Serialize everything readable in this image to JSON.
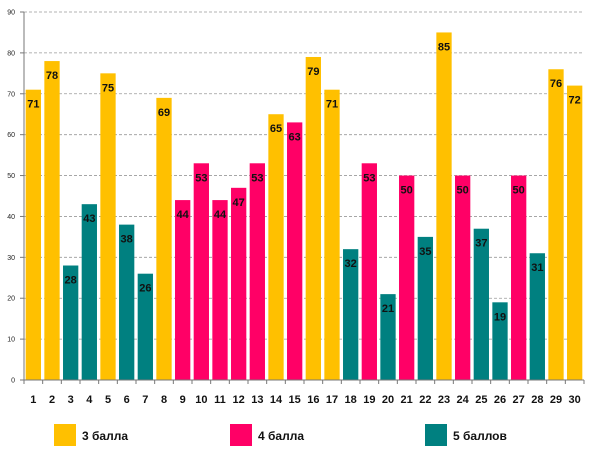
{
  "chart_data": {
    "type": "bar",
    "categories": [
      "1",
      "2",
      "3",
      "4",
      "5",
      "6",
      "7",
      "8",
      "9",
      "10",
      "11",
      "12",
      "13",
      "14",
      "15",
      "16",
      "17",
      "18",
      "19",
      "20",
      "21",
      "22",
      "23",
      "24",
      "25",
      "26",
      "27",
      "28",
      "29",
      "30"
    ],
    "values": [
      71,
      78,
      28,
      43,
      75,
      38,
      26,
      69,
      44,
      53,
      44,
      47,
      53,
      65,
      63,
      79,
      71,
      32,
      53,
      21,
      50,
      35,
      85,
      50,
      37,
      19,
      50,
      31,
      76,
      72
    ],
    "groups": [
      "3",
      "3",
      "5",
      "5",
      "3",
      "5",
      "5",
      "3",
      "4",
      "4",
      "4",
      "4",
      "4",
      "3",
      "4",
      "3",
      "3",
      "5",
      "4",
      "5",
      "4",
      "5",
      "3",
      "4",
      "5",
      "5",
      "4",
      "5",
      "3",
      "3"
    ],
    "series": [
      {
        "key": "3",
        "name": "3 балла",
        "color": "#FFC000"
      },
      {
        "key": "4",
        "name": "4 балла",
        "color": "#FF0066"
      },
      {
        "key": "5",
        "name": "5 баллов",
        "color": "#008080"
      }
    ],
    "yticks": [
      0,
      10,
      20,
      30,
      40,
      50,
      60,
      70,
      80,
      90
    ],
    "ylim": [
      0,
      90
    ],
    "grid": true,
    "legend_position": "bottom"
  }
}
